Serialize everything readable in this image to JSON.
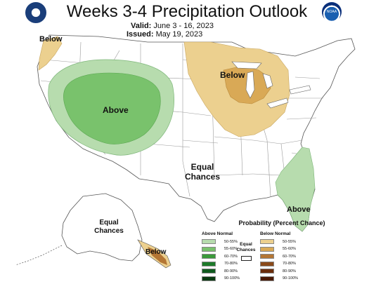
{
  "header": {
    "title": "Weeks 3-4 Precipitation Outlook",
    "valid_label": "Valid:",
    "valid_value": "June 3 - 16, 2023",
    "issued_label": "Issued:",
    "issued_value": "May 19, 2023"
  },
  "logos": {
    "left": "doc-seal-icon",
    "right": "noaa-logo-icon",
    "right_text": "NOAA"
  },
  "map": {
    "labels": {
      "pnw": "Below",
      "west": "Above",
      "great_lakes": "Below",
      "center": "Equal Chances",
      "florida": "Above",
      "alaska_ec": "Equal Chances",
      "alaska_se": "Below"
    },
    "colors": {
      "above_50_55": "#a9d8a0",
      "above_55_60": "#6bbd60",
      "below_50_55": "#ecd08f",
      "below_55_60": "#d9a956",
      "below_60_70": "#b47634",
      "state_line": "#9a9a9a",
      "land": "#ffffff"
    }
  },
  "legend": {
    "title": "Probability (Percent Chance)",
    "above_header": "Above Normal",
    "below_header": "Below Normal",
    "equal_chances": "Equal Chances",
    "above": [
      {
        "range": "50-55%",
        "color": "#b7dcae"
      },
      {
        "range": "55-60%",
        "color": "#79c26c"
      },
      {
        "range": "60-70%",
        "color": "#3a9a3a"
      },
      {
        "range": "70-80%",
        "color": "#1d7a2a"
      },
      {
        "range": "80-90%",
        "color": "#0f5a1e"
      },
      {
        "range": "90-100%",
        "color": "#0a3a12"
      }
    ],
    "below": [
      {
        "range": "50-55%",
        "color": "#ecd08f"
      },
      {
        "range": "55-60%",
        "color": "#d9a956"
      },
      {
        "range": "60-70%",
        "color": "#b47634"
      },
      {
        "range": "70-80%",
        "color": "#8a4a1a"
      },
      {
        "range": "80-90%",
        "color": "#6b2d0c"
      },
      {
        "range": "90-100%",
        "color": "#4a1a06"
      }
    ]
  }
}
